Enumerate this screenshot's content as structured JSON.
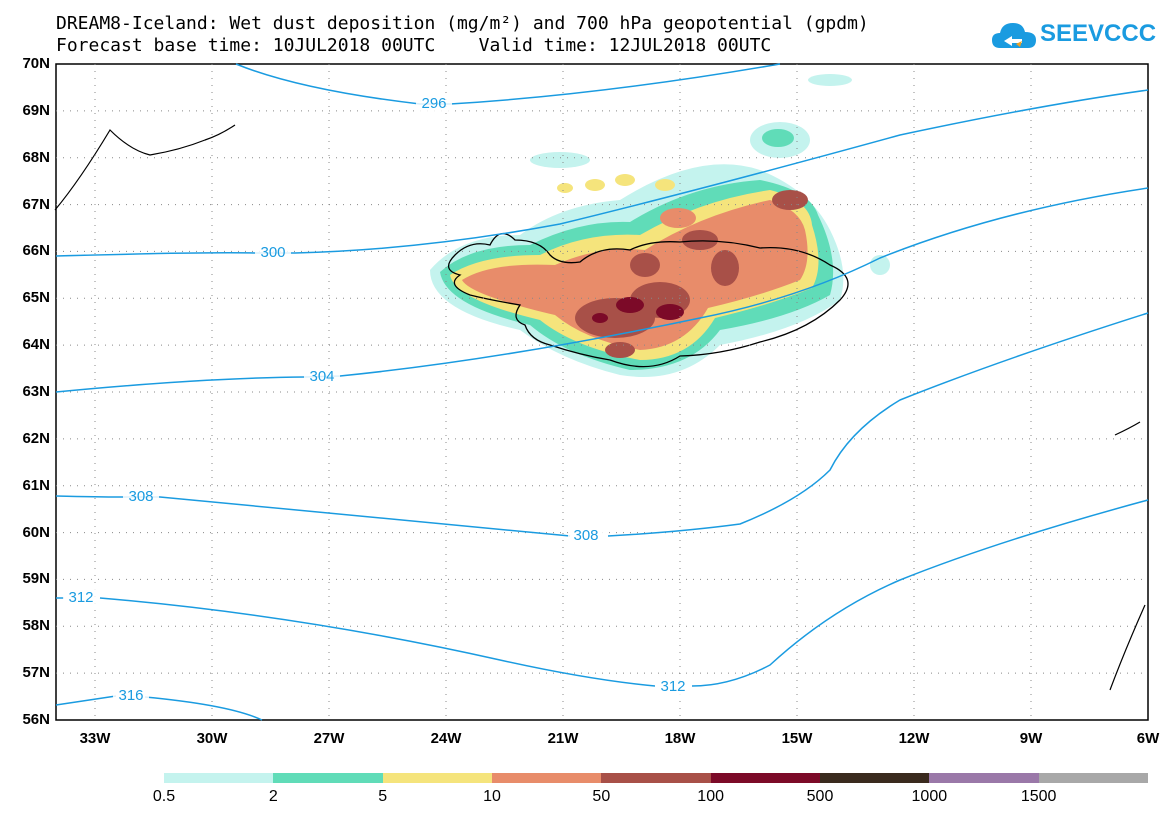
{
  "title_line1": "DREAM8-Iceland: Wet dust deposition (mg/m²) and 700 hPa geopotential (gpdm)",
  "title_line2": "Forecast base time: 10JUL2018 00UTC    Valid time: 12JUL2018 00UTC",
  "logo_text": "SEEVCCC",
  "lat_labels": [
    "70N",
    "69N",
    "68N",
    "67N",
    "66N",
    "65N",
    "64N",
    "63N",
    "62N",
    "61N",
    "60N",
    "59N",
    "58N",
    "57N",
    "56N"
  ],
  "lon_labels": [
    "33W",
    "30W",
    "27W",
    "24W",
    "21W",
    "18W",
    "15W",
    "12W",
    "9W",
    "6W"
  ],
  "contour_labels": [
    "296",
    "300",
    "304",
    "308",
    "308",
    "312",
    "312",
    "316"
  ],
  "legend": {
    "labels": [
      "0.5",
      "2",
      "5",
      "10",
      "50",
      "100",
      "500",
      "1000",
      "1500"
    ],
    "colors": [
      "#c4f3ee",
      "#60dcb8",
      "#f5e47c",
      "#e88c6a",
      "#a85048",
      "#7c0a28",
      "#3a2a1e",
      "#9a78a8",
      "#a8a8a8"
    ]
  },
  "colors": {
    "contour": "#1a9be0",
    "grid": "#888888"
  }
}
